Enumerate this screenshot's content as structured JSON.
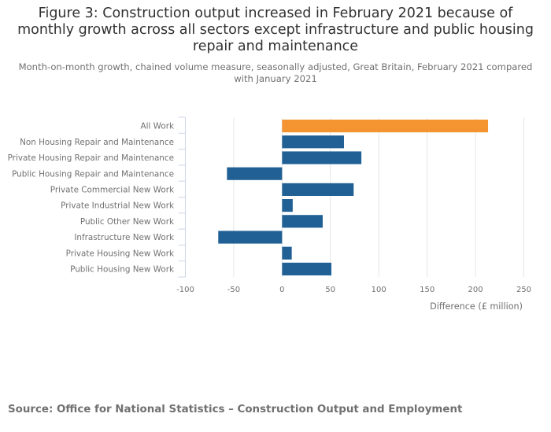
{
  "title": "Figure 3: Construction output increased in February 2021 because of monthly growth across all sectors except infrastructure and public housing repair and maintenance",
  "subtitle": "Month-on-month growth, chained volume measure, seasonally adjusted, Great Britain, February 2021 compared with January 2021",
  "source": "Source: Office for National Statistics – Construction Output and Employment",
  "colors": {
    "highlight": "#f39431",
    "bar": "#206095",
    "grid": "#e5e5e5",
    "axis": "#ccd6e6"
  },
  "chart_data": {
    "type": "bar",
    "orientation": "horizontal",
    "title": "Figure 3: Construction output increased in February 2021 because of monthly growth across all sectors except infrastructure and public housing repair and maintenance",
    "subtitle": "Month-on-month growth, chained volume measure, seasonally adjusted, Great Britain, February 2021 compared with January 2021",
    "xlabel": "Difference (£ million)",
    "ylabel": "",
    "xlim": [
      -100,
      250
    ],
    "xticks": [
      -100,
      -50,
      0,
      50,
      100,
      150,
      200,
      250
    ],
    "grid": true,
    "legend": "none",
    "categories": [
      "All Work",
      "Non Housing Repair and Maintenance",
      "Private Housing Repair and Maintenance",
      "Public Housing Repair and Maintenance",
      "Private Commercial New Work",
      "Private Industrial New Work",
      "Public Other New Work",
      "Infrastructure New Work",
      "Private Housing New Work",
      "Public Housing New Work"
    ],
    "values": [
      213,
      64,
      82,
      -57,
      74,
      11,
      42,
      -66,
      10,
      51
    ],
    "highlighted": [
      "All Work"
    ]
  }
}
